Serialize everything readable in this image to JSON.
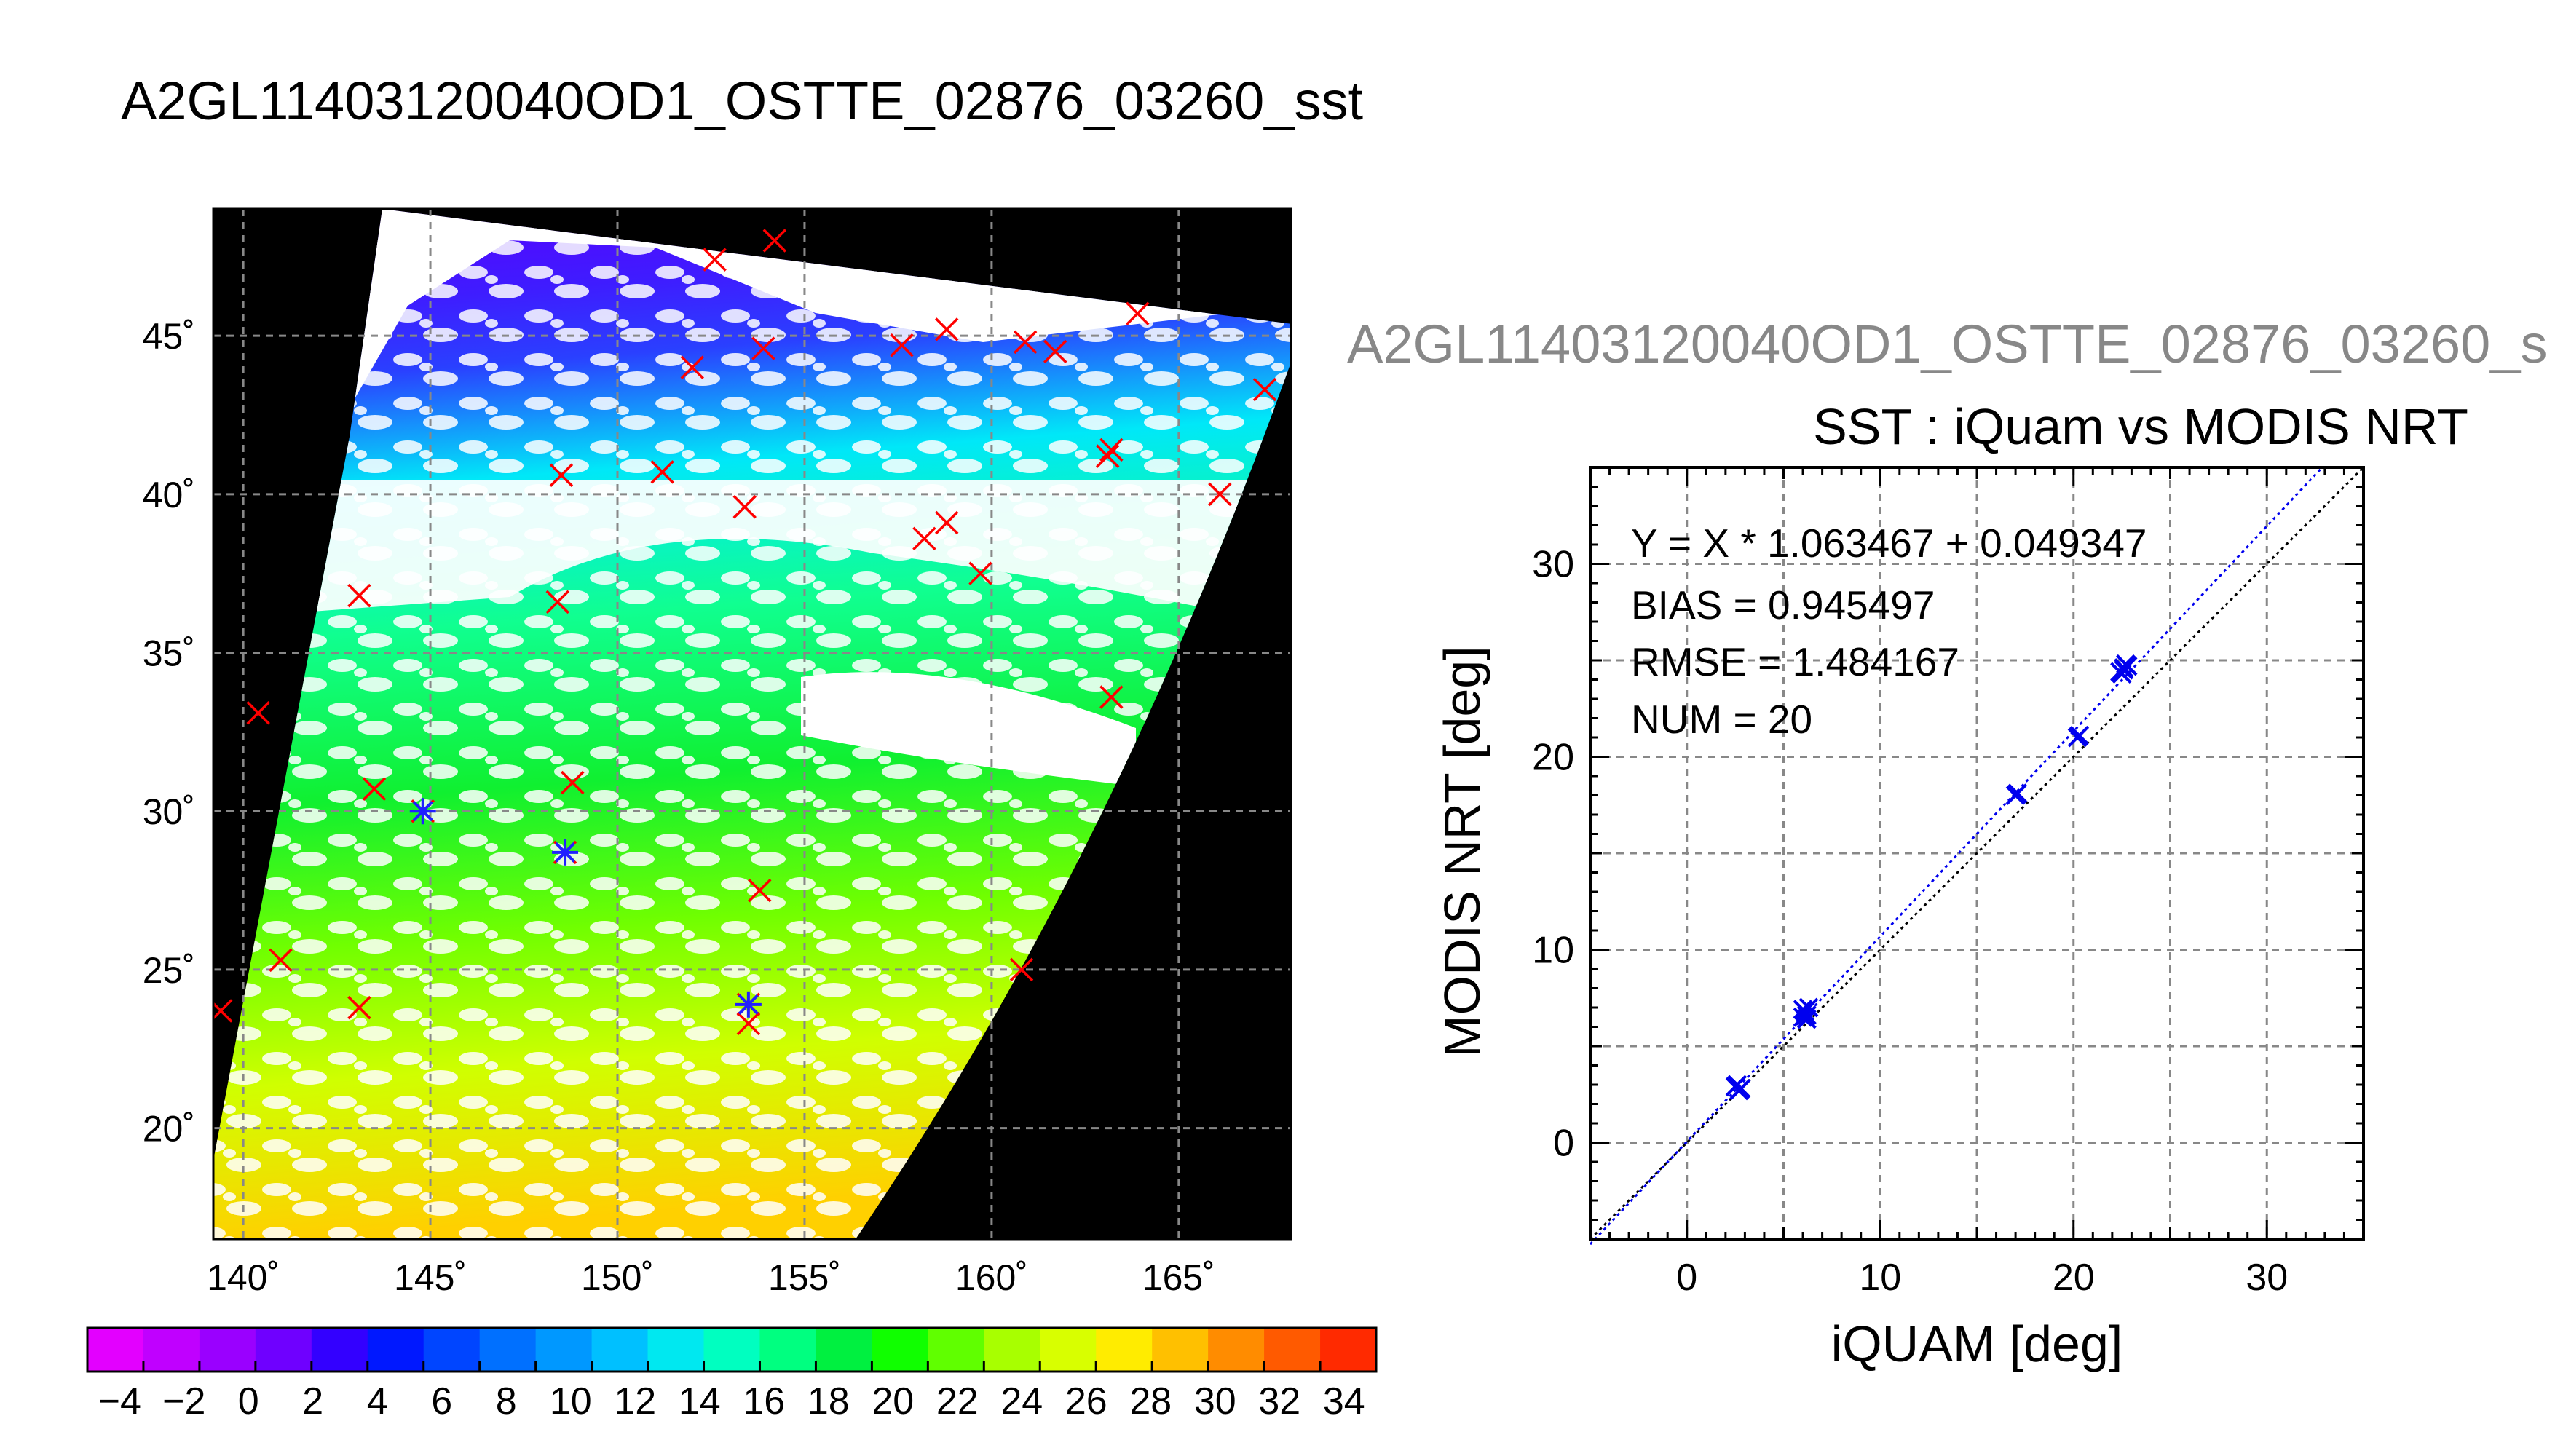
{
  "page": {
    "title": "A2GL11403120040OD1_OSTTE_02876_03260_sst",
    "subtitle": "A2GL11403120040OD1_OSTTE_02876_03260_s"
  },
  "map": {
    "lon_ticks": [
      "140˚",
      "145˚",
      "150˚",
      "155˚",
      "160˚",
      "165˚"
    ],
    "lat_ticks": [
      "20˚",
      "25˚",
      "30˚",
      "35˚",
      "40˚",
      "45˚"
    ],
    "lon_range": [
      139.2,
      168.0
    ],
    "lat_range": [
      16.5,
      49.0
    ],
    "matchup_points": [
      [
        139.4,
        23.7
      ],
      [
        140.4,
        33.1
      ],
      [
        141.0,
        25.3
      ],
      [
        143.1,
        23.8
      ],
      [
        143.1,
        36.8
      ],
      [
        143.5,
        30.7
      ],
      [
        144.8,
        30.0
      ],
      [
        148.4,
        36.6
      ],
      [
        148.5,
        40.6
      ],
      [
        148.6,
        28.7
      ],
      [
        148.8,
        30.9
      ],
      [
        151.2,
        40.7
      ],
      [
        152.0,
        44.0
      ],
      [
        152.6,
        47.4
      ],
      [
        153.4,
        39.6
      ],
      [
        153.5,
        23.9
      ],
      [
        153.5,
        23.3
      ],
      [
        153.8,
        27.5
      ],
      [
        153.9,
        44.6
      ],
      [
        154.2,
        48.0
      ],
      [
        157.6,
        44.7
      ],
      [
        158.2,
        38.6
      ],
      [
        158.8,
        39.1
      ],
      [
        158.8,
        45.2
      ],
      [
        159.7,
        37.5
      ],
      [
        160.8,
        25.0
      ],
      [
        160.9,
        44.8
      ],
      [
        161.7,
        44.5
      ],
      [
        163.1,
        41.2
      ],
      [
        163.2,
        41.4
      ],
      [
        163.2,
        33.6
      ],
      [
        163.9,
        45.7
      ],
      [
        166.1,
        40.0
      ],
      [
        167.3,
        43.3
      ]
    ],
    "highlighted_points": [
      [
        144.8,
        30.0
      ],
      [
        148.6,
        28.7
      ],
      [
        153.5,
        23.9
      ]
    ]
  },
  "colorbar": {
    "ticks": [
      "−4",
      "−2",
      "0",
      "2",
      "4",
      "6",
      "8",
      "10",
      "12",
      "14",
      "16",
      "18",
      "20",
      "22",
      "24",
      "26",
      "28",
      "30",
      "32",
      "34"
    ],
    "colors": [
      "#e300ff",
      "#c000ff",
      "#9a00ff",
      "#6f00ff",
      "#3300ff",
      "#0018ff",
      "#0045ff",
      "#0070ff",
      "#0098ff",
      "#00c0ff",
      "#00e8f0",
      "#00ffc0",
      "#00ff80",
      "#00f040",
      "#10ff00",
      "#60ff00",
      "#a8ff00",
      "#d8ff00",
      "#ffec00",
      "#ffc000",
      "#ff8c00",
      "#ff5a00",
      "#ff2a00"
    ],
    "range": [
      -5,
      35
    ]
  },
  "chart_data": {
    "type": "scatter",
    "title": "SST : iQuam vs MODIS NRT",
    "xlabel": "iQUAM [deg]",
    "ylabel": "MODIS NRT [deg]",
    "xlim": [
      -5,
      35
    ],
    "ylim": [
      -5,
      35
    ],
    "x_ticks": [
      "0",
      "10",
      "20",
      "30"
    ],
    "y_ticks": [
      "0",
      "10",
      "20",
      "30"
    ],
    "grid": true,
    "stats": {
      "regression": "Y = X * 1.063467 + 0.049347",
      "bias": "BIAS = 0.945497",
      "rmse": "RMSE = 1.484167",
      "num": "NUM = 20"
    },
    "fit": {
      "slope": 1.063467,
      "intercept": 0.049347
    },
    "series": [
      {
        "x": [
          2.5,
          2.7,
          2.6,
          2.8,
          6.0,
          6.1,
          6.2,
          6.3,
          6.0,
          6.2,
          17.0,
          17.1,
          20.2,
          20.3,
          22.5,
          22.6,
          22.7,
          22.4,
          22.8,
          22.6
        ],
        "y": [
          2.9,
          2.7,
          3.0,
          2.8,
          6.5,
          6.8,
          6.6,
          7.0,
          6.9,
          6.4,
          18.0,
          18.1,
          21.0,
          21.1,
          24.3,
          24.5,
          24.8,
          24.4,
          24.7,
          24.6
        ]
      }
    ]
  }
}
